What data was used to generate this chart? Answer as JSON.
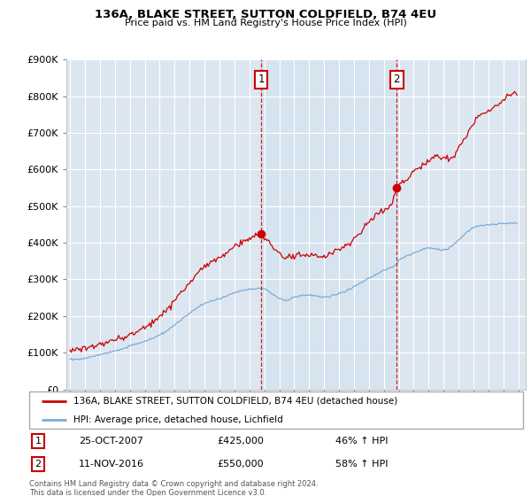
{
  "title": "136A, BLAKE STREET, SUTTON COLDFIELD, B74 4EU",
  "subtitle": "Price paid vs. HM Land Registry's House Price Index (HPI)",
  "red_line_label": "136A, BLAKE STREET, SUTTON COLDFIELD, B74 4EU (detached house)",
  "blue_line_label": "HPI: Average price, detached house, Lichfield",
  "sale1_date": "25-OCT-2007",
  "sale1_price": 425000,
  "sale1_pct": "46%",
  "sale2_date": "11-NOV-2016",
  "sale2_price": 550000,
  "sale2_pct": "58%",
  "footer": "Contains HM Land Registry data © Crown copyright and database right 2024.\nThis data is licensed under the Open Government Licence v3.0.",
  "red_color": "#cc0000",
  "blue_color": "#7aadd4",
  "shade_color": "#d6e4f0",
  "plot_bg_color": "#dce6f1",
  "ylim": [
    0,
    900000
  ],
  "xlim_start": 1994.75,
  "xlim_end": 2025.5,
  "sale1_year": 2007.79,
  "sale2_year": 2016.87
}
